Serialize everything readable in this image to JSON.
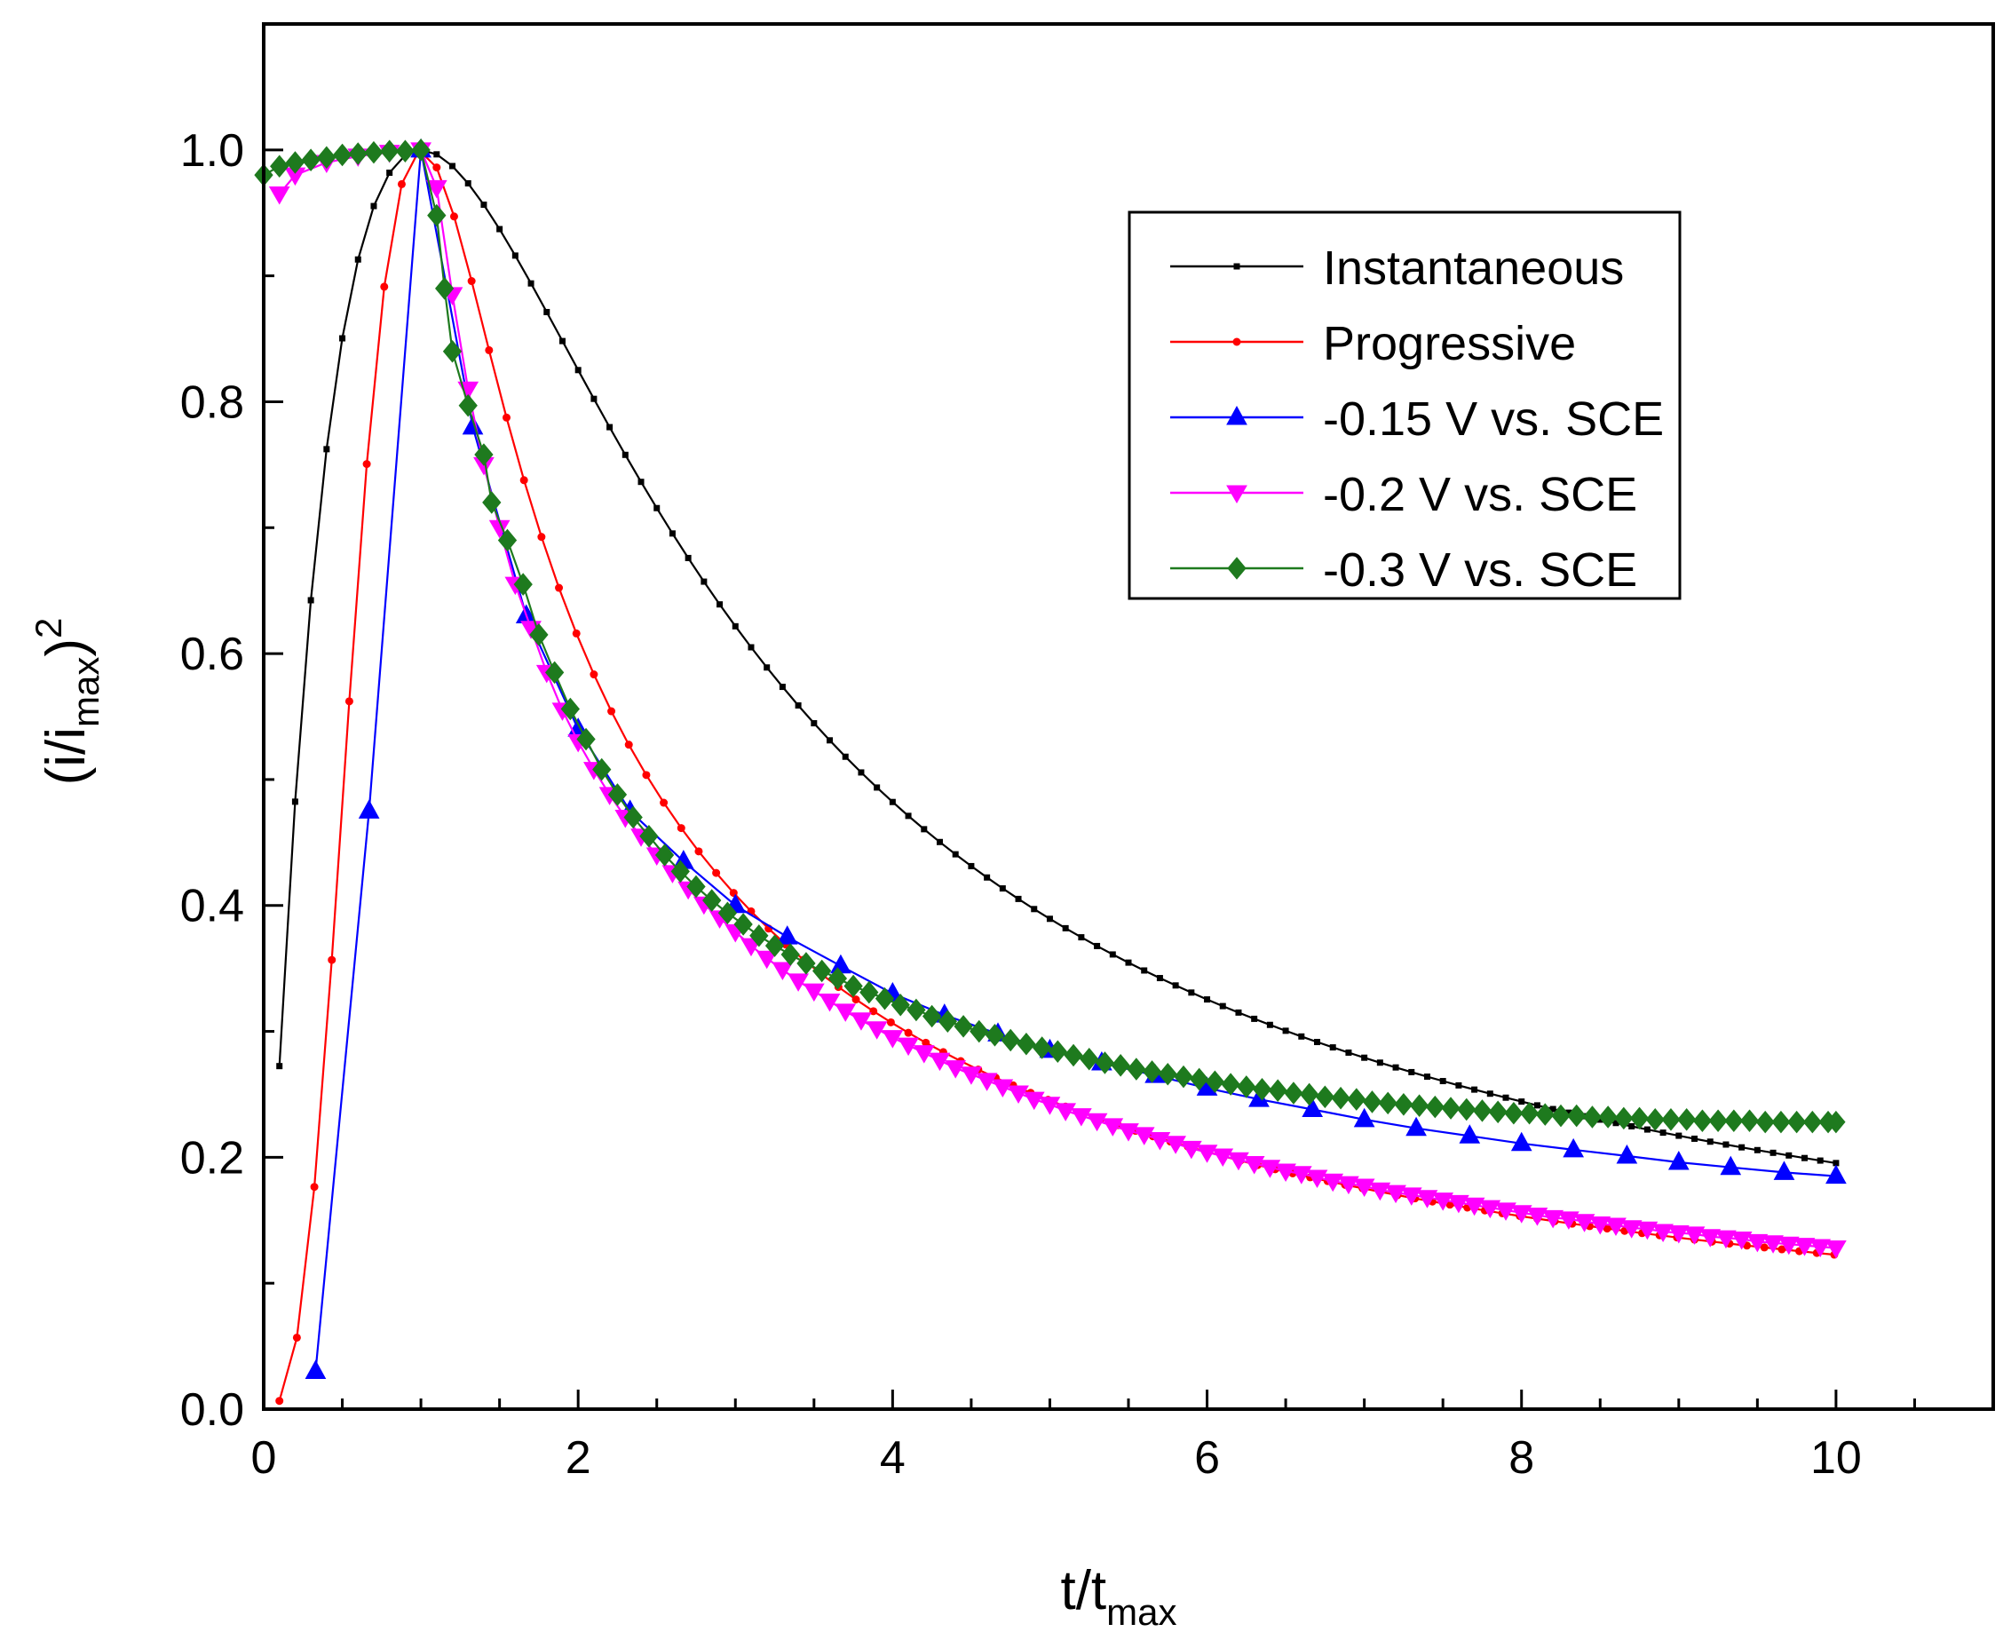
{
  "chart_data": {
    "type": "line",
    "title": "",
    "xlabel": {
      "main": "t/t",
      "sub": "max"
    },
    "ylabel": {
      "open": "(i/i",
      "sub": "max",
      "close": ")",
      "sup": "2"
    },
    "xlim": [
      0,
      11
    ],
    "ylim": [
      0,
      1.1
    ],
    "xticks": [
      0,
      2,
      4,
      6,
      8,
      10
    ],
    "yticks": [
      0.0,
      0.2,
      0.4,
      0.6,
      0.8,
      1.0
    ],
    "xtick_labels": [
      "0",
      "2",
      "4",
      "6",
      "8",
      "10"
    ],
    "ytick_labels": [
      "0.0",
      "0.2",
      "0.4",
      "0.6",
      "0.8",
      "1.0"
    ],
    "legend_position": "upper-right",
    "grid": false,
    "series": [
      {
        "name": "Instantaneous",
        "color": "#000000",
        "marker": "square",
        "model": "instantaneous"
      },
      {
        "name": "Progressive",
        "color": "#ff0000",
        "marker": "circle",
        "model": "progressive"
      },
      {
        "name": "-0.15 V vs. SCE",
        "color": "#0000ff",
        "marker": "triangle-up",
        "points": [
          [
            0.33,
            0.03
          ],
          [
            0.67,
            0.475
          ],
          [
            1.0,
            1.0
          ],
          [
            1.33,
            0.78
          ],
          [
            1.67,
            0.63
          ],
          [
            2.0,
            0.54
          ],
          [
            2.33,
            0.475
          ],
          [
            2.67,
            0.435
          ],
          [
            3.0,
            0.4
          ],
          [
            3.33,
            0.375
          ],
          [
            3.67,
            0.352
          ],
          [
            4.0,
            0.33
          ],
          [
            4.33,
            0.313
          ],
          [
            4.67,
            0.298
          ],
          [
            5.0,
            0.285
          ],
          [
            5.33,
            0.275
          ],
          [
            5.67,
            0.265
          ],
          [
            6.0,
            0.255
          ],
          [
            6.33,
            0.246
          ],
          [
            6.67,
            0.238
          ],
          [
            7.0,
            0.23
          ],
          [
            7.33,
            0.223
          ],
          [
            7.67,
            0.217
          ],
          [
            8.0,
            0.211
          ],
          [
            8.33,
            0.206
          ],
          [
            8.67,
            0.201
          ],
          [
            9.0,
            0.196
          ],
          [
            9.33,
            0.192
          ],
          [
            9.67,
            0.188
          ],
          [
            10.0,
            0.185
          ]
        ]
      },
      {
        "name": "-0.2 V vs. SCE",
        "color": "#ff00ff",
        "marker": "triangle-down",
        "points": [
          [
            0.1,
            0.965
          ],
          [
            0.2,
            0.98
          ],
          [
            0.4,
            0.99
          ],
          [
            0.6,
            0.995
          ],
          [
            0.8,
            0.998
          ],
          [
            1.0,
            1.0
          ],
          [
            1.1,
            0.97
          ],
          [
            1.2,
            0.885
          ],
          [
            1.3,
            0.81
          ],
          [
            1.4,
            0.75
          ],
          [
            1.5,
            0.7
          ],
          [
            1.6,
            0.655
          ],
          [
            1.7,
            0.62
          ],
          [
            1.8,
            0.585
          ],
          [
            1.9,
            0.555
          ],
          [
            2.0,
            0.53
          ],
          [
            2.1,
            0.508
          ],
          [
            2.2,
            0.488
          ],
          [
            2.3,
            0.47
          ],
          [
            2.4,
            0.455
          ],
          [
            2.5,
            0.44
          ],
          [
            2.6,
            0.426
          ],
          [
            2.7,
            0.413
          ],
          [
            2.8,
            0.401
          ],
          [
            2.9,
            0.39
          ],
          [
            3.0,
            0.379
          ],
          [
            3.1,
            0.368
          ],
          [
            3.2,
            0.358
          ],
          [
            3.3,
            0.349
          ],
          [
            3.4,
            0.34
          ],
          [
            3.5,
            0.332
          ],
          [
            3.6,
            0.324
          ],
          [
            3.7,
            0.316
          ],
          [
            3.8,
            0.309
          ],
          [
            3.9,
            0.302
          ],
          [
            4.0,
            0.295
          ],
          [
            4.1,
            0.289
          ],
          [
            4.2,
            0.283
          ],
          [
            4.3,
            0.277
          ],
          [
            4.4,
            0.271
          ],
          [
            4.5,
            0.266
          ],
          [
            4.6,
            0.261
          ],
          [
            4.7,
            0.256
          ],
          [
            4.8,
            0.251
          ],
          [
            4.9,
            0.246
          ],
          [
            5.0,
            0.242
          ],
          [
            5.1,
            0.237
          ],
          [
            5.2,
            0.233
          ],
          [
            5.3,
            0.229
          ],
          [
            5.4,
            0.225
          ],
          [
            5.5,
            0.221
          ],
          [
            5.6,
            0.218
          ],
          [
            5.7,
            0.214
          ],
          [
            5.8,
            0.211
          ],
          [
            5.9,
            0.207
          ],
          [
            6.0,
            0.204
          ],
          [
            6.1,
            0.201
          ],
          [
            6.2,
            0.198
          ],
          [
            6.3,
            0.195
          ],
          [
            6.4,
            0.192
          ],
          [
            6.5,
            0.189
          ],
          [
            6.6,
            0.187
          ],
          [
            6.7,
            0.184
          ],
          [
            6.8,
            0.181
          ],
          [
            6.9,
            0.179
          ],
          [
            7.0,
            0.177
          ],
          [
            7.1,
            0.174
          ],
          [
            7.2,
            0.172
          ],
          [
            7.3,
            0.17
          ],
          [
            7.4,
            0.168
          ],
          [
            7.5,
            0.166
          ],
          [
            7.6,
            0.164
          ],
          [
            7.7,
            0.162
          ],
          [
            7.8,
            0.16
          ],
          [
            7.9,
            0.158
          ],
          [
            8.0,
            0.156
          ],
          [
            8.1,
            0.154
          ],
          [
            8.2,
            0.152
          ],
          [
            8.3,
            0.151
          ],
          [
            8.4,
            0.149
          ],
          [
            8.5,
            0.147
          ],
          [
            8.6,
            0.146
          ],
          [
            8.7,
            0.144
          ],
          [
            8.8,
            0.143
          ],
          [
            8.9,
            0.141
          ],
          [
            9.0,
            0.14
          ],
          [
            9.1,
            0.139
          ],
          [
            9.2,
            0.137
          ],
          [
            9.3,
            0.136
          ],
          [
            9.4,
            0.135
          ],
          [
            9.5,
            0.133
          ],
          [
            9.6,
            0.132
          ],
          [
            9.7,
            0.131
          ],
          [
            9.8,
            0.13
          ],
          [
            9.9,
            0.129
          ],
          [
            10.0,
            0.128
          ]
        ]
      },
      {
        "name": "-0.3 V vs. SCE",
        "color": "#1e7a1e",
        "marker": "diamond",
        "points": [
          [
            0.0,
            0.98
          ],
          [
            0.1,
            0.987
          ],
          [
            0.2,
            0.99
          ],
          [
            0.3,
            0.992
          ],
          [
            0.4,
            0.994
          ],
          [
            0.5,
            0.996
          ],
          [
            0.6,
            0.997
          ],
          [
            0.7,
            0.998
          ],
          [
            0.8,
            0.999
          ],
          [
            0.9,
            0.999
          ],
          [
            1.0,
            1.0
          ],
          [
            1.1,
            0.948
          ],
          [
            1.15,
            0.89
          ],
          [
            1.2,
            0.84
          ],
          [
            1.3,
            0.797
          ],
          [
            1.4,
            0.758
          ],
          [
            1.45,
            0.72
          ],
          [
            1.55,
            0.69
          ],
          [
            1.65,
            0.655
          ],
          [
            1.75,
            0.615
          ],
          [
            1.85,
            0.585
          ],
          [
            1.95,
            0.556
          ],
          [
            2.05,
            0.532
          ],
          [
            2.15,
            0.508
          ],
          [
            2.25,
            0.488
          ],
          [
            2.35,
            0.47
          ],
          [
            2.45,
            0.455
          ],
          [
            2.55,
            0.44
          ],
          [
            2.65,
            0.427
          ],
          [
            2.75,
            0.415
          ],
          [
            2.85,
            0.404
          ],
          [
            2.95,
            0.394
          ],
          [
            3.05,
            0.385
          ],
          [
            3.15,
            0.376
          ],
          [
            3.25,
            0.368
          ],
          [
            3.35,
            0.361
          ],
          [
            3.45,
            0.354
          ],
          [
            3.55,
            0.348
          ],
          [
            3.65,
            0.342
          ],
          [
            3.75,
            0.336
          ],
          [
            3.85,
            0.331
          ],
          [
            3.95,
            0.326
          ],
          [
            4.05,
            0.321
          ],
          [
            4.15,
            0.317
          ],
          [
            4.25,
            0.312
          ],
          [
            4.35,
            0.308
          ],
          [
            4.45,
            0.304
          ],
          [
            4.55,
            0.3
          ],
          [
            4.65,
            0.297
          ],
          [
            4.75,
            0.293
          ],
          [
            4.85,
            0.29
          ],
          [
            4.95,
            0.287
          ],
          [
            5.05,
            0.284
          ],
          [
            5.15,
            0.281
          ],
          [
            5.25,
            0.278
          ],
          [
            5.35,
            0.275
          ],
          [
            5.45,
            0.273
          ],
          [
            5.55,
            0.27
          ],
          [
            5.65,
            0.268
          ],
          [
            5.75,
            0.266
          ],
          [
            5.85,
            0.264
          ],
          [
            5.95,
            0.262
          ],
          [
            6.05,
            0.26
          ],
          [
            6.15,
            0.258
          ],
          [
            6.25,
            0.256
          ],
          [
            6.35,
            0.254
          ],
          [
            6.45,
            0.253
          ],
          [
            6.55,
            0.251
          ],
          [
            6.65,
            0.25
          ],
          [
            6.75,
            0.248
          ],
          [
            6.85,
            0.247
          ],
          [
            6.95,
            0.246
          ],
          [
            7.05,
            0.244
          ],
          [
            7.15,
            0.243
          ],
          [
            7.25,
            0.242
          ],
          [
            7.35,
            0.241
          ],
          [
            7.45,
            0.24
          ],
          [
            7.55,
            0.239
          ],
          [
            7.65,
            0.238
          ],
          [
            7.75,
            0.237
          ],
          [
            7.85,
            0.236
          ],
          [
            7.95,
            0.235
          ],
          [
            8.05,
            0.235
          ],
          [
            8.15,
            0.234
          ],
          [
            8.25,
            0.233
          ],
          [
            8.35,
            0.233
          ],
          [
            8.45,
            0.232
          ],
          [
            8.55,
            0.232
          ],
          [
            8.65,
            0.231
          ],
          [
            8.75,
            0.231
          ],
          [
            8.85,
            0.23
          ],
          [
            8.95,
            0.23
          ],
          [
            9.05,
            0.23
          ],
          [
            9.15,
            0.229
          ],
          [
            9.25,
            0.229
          ],
          [
            9.35,
            0.229
          ],
          [
            9.45,
            0.229
          ],
          [
            9.55,
            0.228
          ],
          [
            9.65,
            0.228
          ],
          [
            9.75,
            0.228
          ],
          [
            9.85,
            0.228
          ],
          [
            9.95,
            0.228
          ],
          [
            10.0,
            0.228
          ]
        ]
      }
    ]
  }
}
